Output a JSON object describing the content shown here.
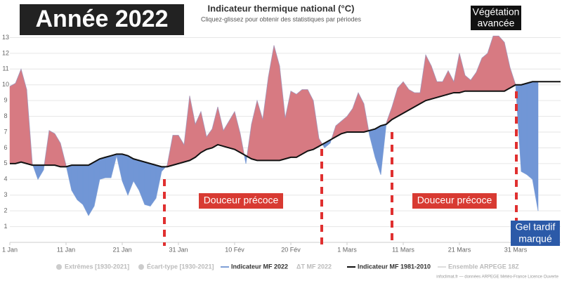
{
  "chart_data": {
    "type": "line",
    "title": "Indicateur thermique national (°C)",
    "subtitle": "Cliquez-glissez pour obtenir des statistiques par périodes",
    "categories": [
      "1 Jan",
      null,
      null,
      null,
      null,
      null,
      null,
      null,
      null,
      null,
      "11 Jan",
      null,
      null,
      null,
      null,
      null,
      null,
      null,
      null,
      null,
      "21 Jan",
      null,
      null,
      null,
      null,
      null,
      null,
      null,
      null,
      null,
      "31 Jan",
      null,
      null,
      null,
      null,
      null,
      null,
      null,
      null,
      null,
      "10 Fév",
      null,
      null,
      null,
      null,
      null,
      null,
      null,
      null,
      null,
      "20 Fév",
      null,
      null,
      null,
      null,
      null,
      null,
      null,
      null,
      null,
      "1 Mars",
      null,
      null,
      null,
      null,
      null,
      null,
      null,
      null,
      null,
      "11 Mars",
      null,
      null,
      null,
      null,
      null,
      null,
      null,
      null,
      null,
      "21 Mars",
      null,
      null,
      null,
      null,
      null,
      null,
      null,
      null,
      null,
      "31 Mars",
      null,
      null,
      null,
      null,
      null,
      null,
      null,
      null
    ],
    "series": [
      {
        "name": "Indicateur MF 2022",
        "color": "#7f9fd6",
        "values": [
          9.9,
          10.1,
          11.0,
          9.7,
          5.0,
          4.0,
          4.6,
          7.1,
          6.9,
          6.3,
          4.9,
          3.3,
          2.7,
          2.4,
          1.7,
          2.3,
          4.0,
          4.1,
          4.1,
          5.5,
          3.9,
          3.0,
          3.9,
          3.3,
          2.4,
          2.3,
          2.8,
          4.5,
          4.9,
          6.8,
          6.8,
          6.2,
          9.3,
          7.5,
          8.3,
          6.7,
          7.2,
          8.6,
          7.1,
          7.7,
          8.3,
          6.9,
          5.0,
          7.5,
          9.0,
          7.8,
          10.5,
          12.5,
          11.2,
          7.9,
          9.6,
          9.4,
          9.7,
          9.7,
          9.0,
          6.6,
          6.0,
          6.3,
          7.4,
          7.7,
          8.0,
          8.5,
          9.5,
          8.8,
          6.8,
          5.4,
          4.3,
          7.6,
          8.6,
          9.8,
          10.2,
          9.7,
          9.5,
          9.5,
          11.9,
          11.2,
          10.2,
          10.2,
          10.9,
          10.2,
          12.0,
          10.6,
          10.3,
          10.8,
          11.7,
          12.0,
          13.1,
          13.1,
          12.7,
          11.1,
          10.0,
          4.5,
          4.3,
          4.0,
          2.0,
          null,
          null,
          null,
          null
        ]
      },
      {
        "name": "Indicateur MF 1981-2010",
        "color": "#111111",
        "values": [
          5.0,
          5.0,
          5.1,
          5.0,
          4.9,
          4.9,
          4.9,
          4.9,
          4.9,
          4.8,
          4.8,
          4.9,
          4.9,
          4.9,
          4.9,
          5.1,
          5.3,
          5.4,
          5.5,
          5.6,
          5.6,
          5.5,
          5.3,
          5.2,
          5.1,
          5.0,
          4.9,
          4.8,
          4.8,
          4.9,
          5.0,
          5.1,
          5.2,
          5.4,
          5.7,
          5.9,
          6.0,
          6.2,
          6.1,
          6.0,
          5.9,
          5.7,
          5.5,
          5.3,
          5.2,
          5.2,
          5.2,
          5.2,
          5.2,
          5.3,
          5.4,
          5.4,
          5.6,
          5.8,
          5.9,
          6.1,
          6.3,
          6.5,
          6.7,
          6.9,
          7.0,
          7.0,
          7.0,
          7.0,
          7.1,
          7.2,
          7.4,
          7.5,
          7.8,
          8.0,
          8.2,
          8.4,
          8.6,
          8.8,
          9.0,
          9.1,
          9.2,
          9.3,
          9.4,
          9.5,
          9.5,
          9.6,
          9.6,
          9.6,
          9.6,
          9.6,
          9.6,
          9.6,
          9.6,
          9.8,
          10.0,
          10.0,
          10.1,
          10.2,
          10.2,
          10.2,
          10.2,
          10.2,
          10.2
        ]
      }
    ],
    "fill_above": "#d77a82",
    "fill_below": "#7196d6",
    "ylim": [
      0,
      13.6
    ],
    "yticks": [
      1,
      2,
      3,
      4,
      5,
      6,
      7,
      8,
      9,
      10,
      11,
      12,
      13
    ],
    "grid": true,
    "inactive_legend": [
      "Extrêmes [1930-2021]",
      "Écart-type [1930-2021]",
      "ΔT MF 2022",
      "Ensemble ARPEGE 18Z"
    ],
    "credits": "infoclimat.fr — données ARPEGE Météo-France Licence Ouverte",
    "annotations": {
      "badge": "Année 2022",
      "vegetation": [
        "Végétation",
        "avancée"
      ],
      "douceur_1": "Douceur précoce",
      "douceur_2": "Douceur précoce",
      "gel": [
        "Gel tardif",
        "marqué"
      ]
    }
  }
}
